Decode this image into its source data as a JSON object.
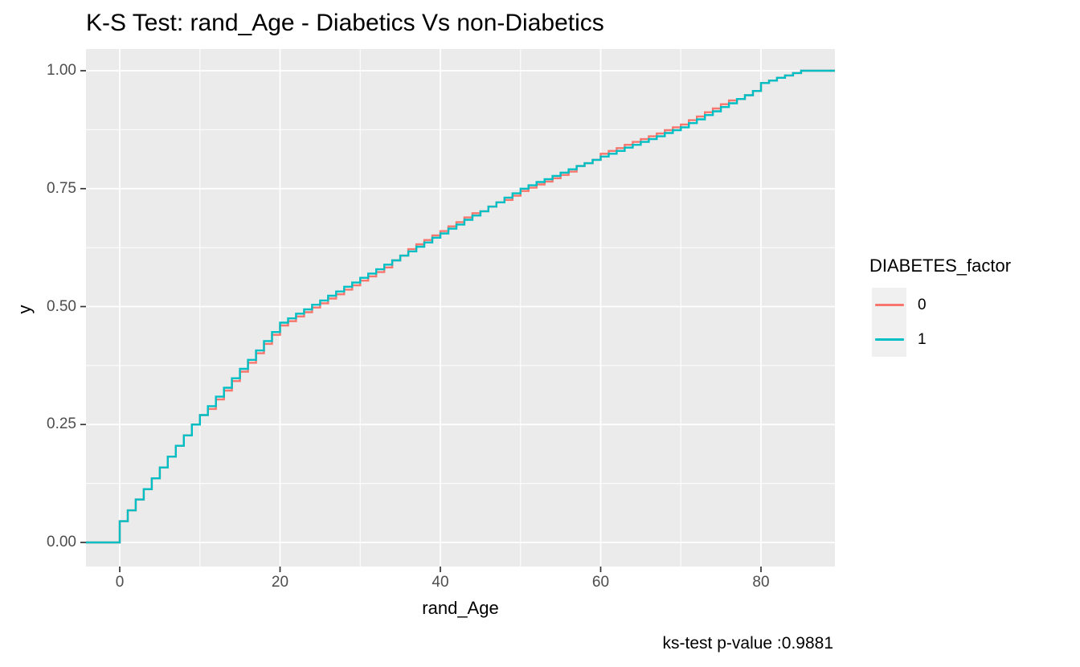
{
  "chart_data": {
    "type": "line",
    "subtype": "ecdf-step",
    "title": "K-S Test: rand_Age - Diabetics Vs non-Diabetics",
    "xlabel": "rand_Age",
    "ylabel": "y",
    "caption": "ks-test p-value :0.9881",
    "legend_title": "DIABETES_factor",
    "legend_position": "right",
    "grid": "on",
    "panel_bg": "#ebebeb",
    "grid_color": "#ffffff",
    "tick_color": "#333333",
    "axis_text_color": "#4d4d4d",
    "xlim": [
      -4.25,
      89.25
    ],
    "ylim": [
      -0.05,
      1.05
    ],
    "x_ticks": [
      0,
      20,
      40,
      60,
      80
    ],
    "x_tick_labels": [
      "0",
      "20",
      "40",
      "60",
      "80"
    ],
    "x_minor_ticks": [
      10,
      30,
      50,
      70
    ],
    "y_ticks": [
      0,
      0.25,
      0.5,
      0.75,
      1
    ],
    "y_tick_labels": [
      "0.00",
      "0.25",
      "0.50",
      "0.75",
      "1.00"
    ],
    "y_minor_ticks": [
      0.125,
      0.375,
      0.625,
      0.875
    ],
    "x": [
      0,
      1,
      2,
      3,
      4,
      5,
      6,
      7,
      8,
      9,
      10,
      11,
      12,
      13,
      14,
      15,
      16,
      17,
      18,
      19,
      20,
      21,
      22,
      23,
      24,
      25,
      26,
      27,
      28,
      29,
      30,
      31,
      32,
      33,
      34,
      35,
      36,
      37,
      38,
      39,
      40,
      41,
      42,
      43,
      44,
      45,
      46,
      47,
      48,
      49,
      50,
      51,
      52,
      53,
      54,
      55,
      56,
      57,
      58,
      59,
      60,
      61,
      62,
      63,
      64,
      65,
      66,
      67,
      68,
      69,
      70,
      71,
      72,
      73,
      74,
      75,
      76,
      77,
      78,
      79,
      80,
      81,
      82,
      83,
      84,
      85
    ],
    "series": [
      {
        "name": "0",
        "color": "#F8766D",
        "values": [
          0.045,
          0.068,
          0.091,
          0.113,
          0.136,
          0.159,
          0.182,
          0.205,
          0.227,
          0.25,
          0.27,
          0.283,
          0.303,
          0.322,
          0.342,
          0.362,
          0.381,
          0.401,
          0.421,
          0.44,
          0.46,
          0.469,
          0.479,
          0.488,
          0.498,
          0.507,
          0.517,
          0.526,
          0.536,
          0.545,
          0.555,
          0.564,
          0.573,
          0.583,
          0.598,
          0.608,
          0.622,
          0.632,
          0.641,
          0.651,
          0.66,
          0.67,
          0.679,
          0.689,
          0.698,
          0.702,
          0.712,
          0.721,
          0.726,
          0.735,
          0.745,
          0.752,
          0.759,
          0.765,
          0.772,
          0.779,
          0.786,
          0.798,
          0.804,
          0.811,
          0.824,
          0.83,
          0.836,
          0.843,
          0.849,
          0.855,
          0.861,
          0.867,
          0.874,
          0.88,
          0.886,
          0.895,
          0.903,
          0.912,
          0.92,
          0.929,
          0.937,
          0.94,
          0.948,
          0.957,
          0.974,
          0.979,
          0.985,
          0.99,
          0.995,
          1.0
        ]
      },
      {
        "name": "1",
        "color": "#00BFC4",
        "values": [
          0.045,
          0.068,
          0.091,
          0.113,
          0.136,
          0.159,
          0.182,
          0.205,
          0.227,
          0.25,
          0.27,
          0.289,
          0.309,
          0.328,
          0.348,
          0.368,
          0.387,
          0.407,
          0.427,
          0.446,
          0.466,
          0.475,
          0.485,
          0.494,
          0.504,
          0.513,
          0.523,
          0.532,
          0.542,
          0.551,
          0.561,
          0.57,
          0.579,
          0.589,
          0.598,
          0.608,
          0.617,
          0.627,
          0.636,
          0.646,
          0.655,
          0.665,
          0.674,
          0.684,
          0.693,
          0.702,
          0.712,
          0.721,
          0.731,
          0.74,
          0.75,
          0.757,
          0.764,
          0.77,
          0.777,
          0.784,
          0.791,
          0.798,
          0.804,
          0.811,
          0.818,
          0.824,
          0.83,
          0.837,
          0.843,
          0.849,
          0.855,
          0.861,
          0.868,
          0.874,
          0.88,
          0.889,
          0.897,
          0.906,
          0.914,
          0.923,
          0.931,
          0.94,
          0.948,
          0.957,
          0.974,
          0.979,
          0.985,
          0.99,
          0.995,
          1.0
        ]
      }
    ]
  }
}
